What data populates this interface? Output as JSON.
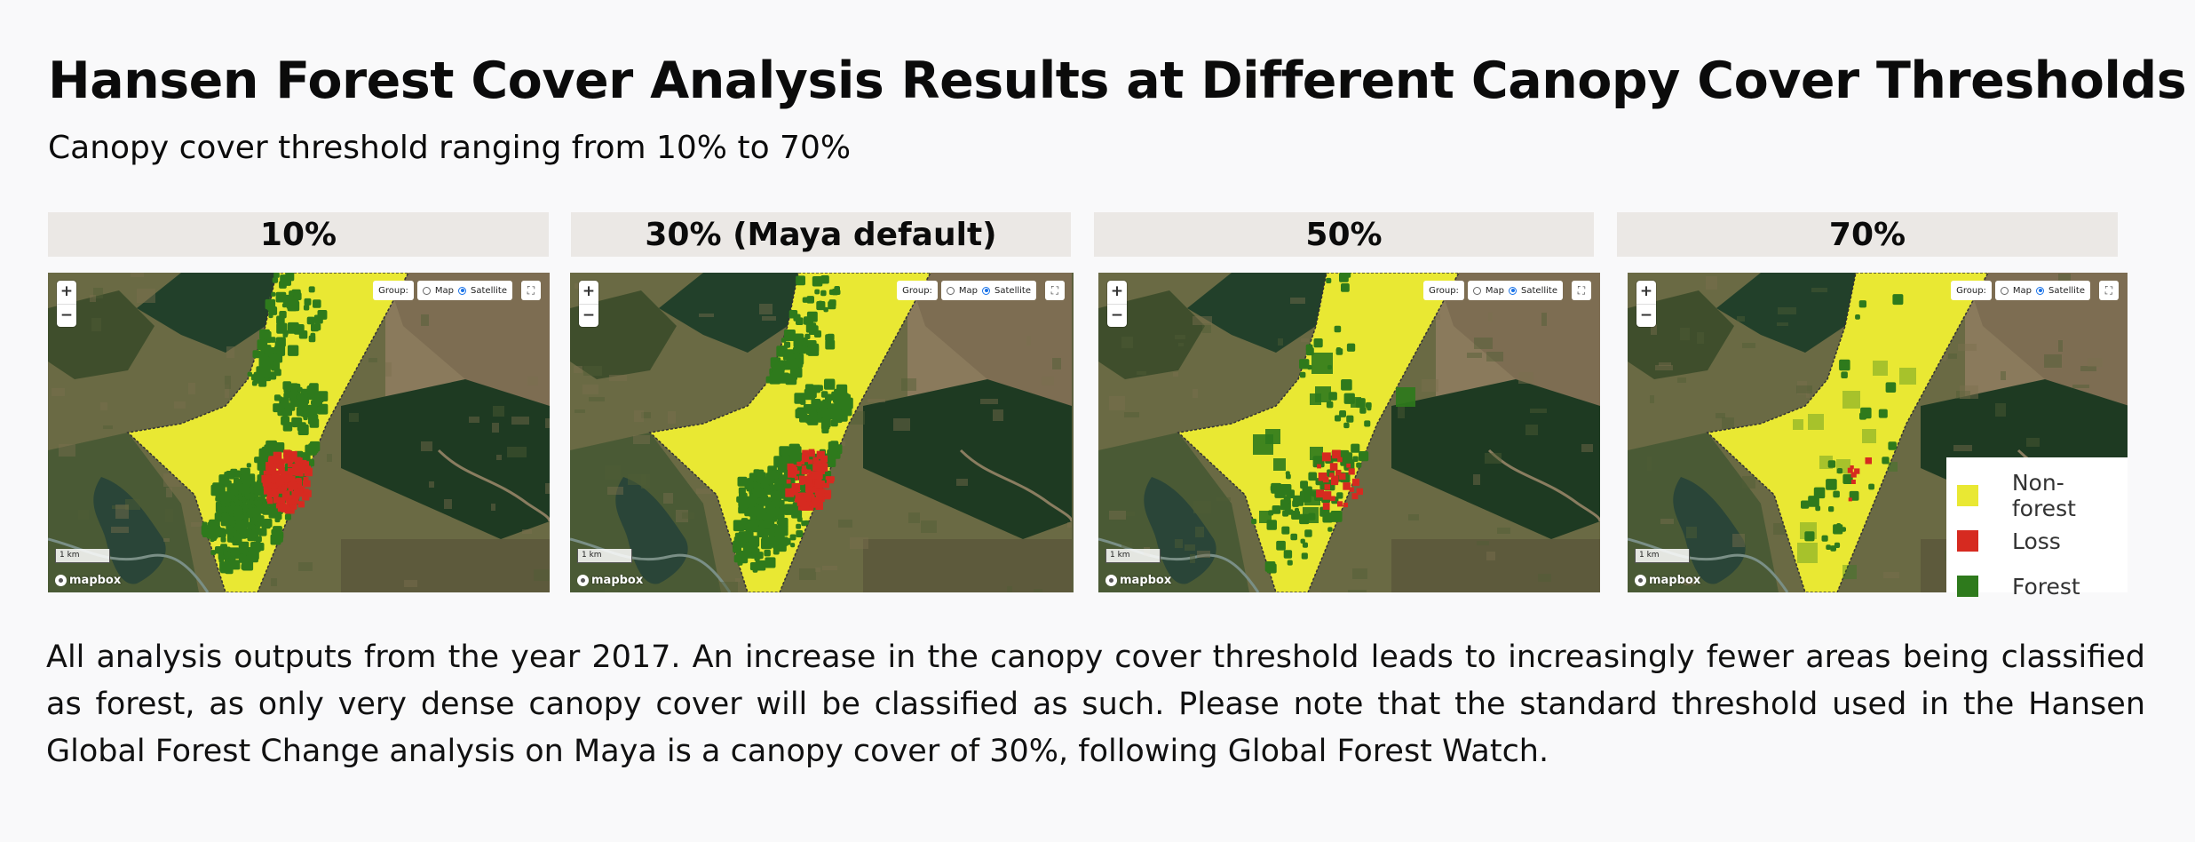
{
  "title": "Hansen Forest Cover Analysis Results at Different Canopy Cover Thresholds",
  "subtitle": "Canopy cover threshold ranging from 10% to 70%",
  "panels": [
    {
      "label": "10%",
      "forest_amount": 1.0,
      "loss_amount": 1.0
    },
    {
      "label": "30% (Maya default)",
      "forest_amount": 0.82,
      "loss_amount": 0.7
    },
    {
      "label": "50%",
      "forest_amount": 0.2,
      "loss_amount": 0.2
    },
    {
      "label": "70%",
      "forest_amount": 0.06,
      "loss_amount": 0.05
    }
  ],
  "map_controls": {
    "zoom_in": "+",
    "zoom_out": "−",
    "group_label": "Group:",
    "layer_options": [
      "Map",
      "Satellite"
    ],
    "selected_layer": "Satellite",
    "scale_label": "1 km",
    "attribution": "mapbox",
    "fullscreen_glyph": "⛶"
  },
  "legend": {
    "items": [
      {
        "label": "Non-forest",
        "color": "#e9e833"
      },
      {
        "label": "Loss",
        "color": "#d62a20"
      },
      {
        "label": "Forest",
        "color": "#2e7a1c"
      }
    ]
  },
  "colors": {
    "non_forest": "#e9e833",
    "loss": "#d62a20",
    "forest": "#2e7a1c"
  },
  "caption": "All analysis outputs from the year 2017. An increase in the canopy cover threshold leads to increasingly fewer areas being classified as forest, as only very dense canopy cover will be classified as such. Please note that the standard threshold used in the Hansen Global Forest Change analysis on Maya is a canopy cover of 30%, following Global Forest Watch."
}
